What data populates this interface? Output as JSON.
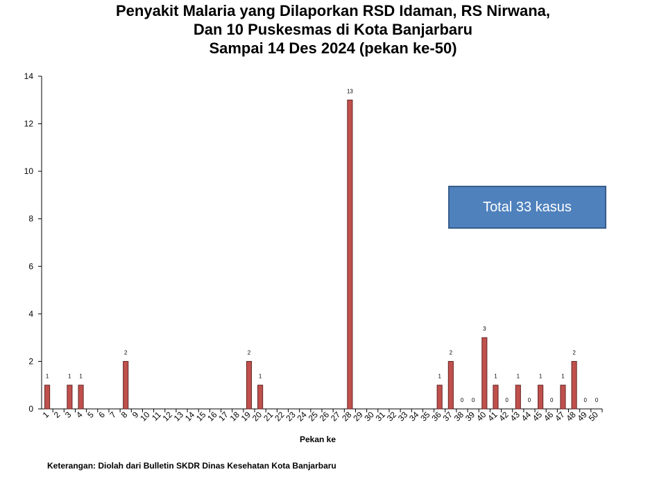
{
  "chart_data": {
    "type": "bar",
    "title_lines": [
      "Penyakit Malaria yang Dilaporkan RSD Idaman, RS Nirwana,",
      "Dan 10 Puskesmas di Kota Banjarbaru",
      "Sampai 14 Des 2024 (pekan ke-50)"
    ],
    "xlabel": "Pekan ke",
    "ylabel": "",
    "ylim": [
      0,
      14
    ],
    "yticks": [
      0,
      2,
      4,
      6,
      8,
      10,
      12,
      14
    ],
    "grid": false,
    "legend": "none",
    "bar_color": "#c0504d",
    "bar_border": "#632523",
    "categories": [
      "1",
      "2",
      "3",
      "4",
      "5",
      "6",
      "7",
      "8",
      "9",
      "10",
      "11",
      "12",
      "13",
      "14",
      "15",
      "16",
      "17",
      "18",
      "19",
      "20",
      "21",
      "22",
      "23",
      "24",
      "25",
      "26",
      "27",
      "28",
      "29",
      "30",
      "31",
      "32",
      "33",
      "34",
      "35",
      "36",
      "37",
      "38",
      "39",
      "40",
      "41",
      "42",
      "43",
      "44",
      "45",
      "46",
      "47",
      "48",
      "49",
      "50"
    ],
    "values": [
      1,
      0,
      1,
      1,
      0,
      0,
      0,
      2,
      0,
      0,
      0,
      0,
      0,
      0,
      0,
      0,
      0,
      0,
      2,
      1,
      0,
      0,
      0,
      0,
      0,
      0,
      0,
      13,
      0,
      0,
      0,
      0,
      0,
      0,
      0,
      1,
      2,
      0,
      0,
      3,
      1,
      0,
      1,
      0,
      1,
      0,
      1,
      2,
      0,
      0
    ],
    "data_labels": [
      {
        "week": "1",
        "label": "1"
      },
      {
        "week": "3",
        "label": "1"
      },
      {
        "week": "4",
        "label": "1"
      },
      {
        "week": "8",
        "label": "2"
      },
      {
        "week": "19",
        "label": "2"
      },
      {
        "week": "20",
        "label": "1"
      },
      {
        "week": "28",
        "label": "13"
      },
      {
        "week": "36",
        "label": "1"
      },
      {
        "week": "37",
        "label": "2"
      },
      {
        "week": "38",
        "label": "0"
      },
      {
        "week": "39",
        "label": "0"
      },
      {
        "week": "40",
        "label": "3"
      },
      {
        "week": "41",
        "label": "1"
      },
      {
        "week": "42",
        "label": "0"
      },
      {
        "week": "43",
        "label": "1"
      },
      {
        "week": "44",
        "label": "0"
      },
      {
        "week": "45",
        "label": "1"
      },
      {
        "week": "46",
        "label": "0"
      },
      {
        "week": "47",
        "label": "1"
      },
      {
        "week": "48",
        "label": "2"
      },
      {
        "week": "49",
        "label": "0"
      },
      {
        "week": "50",
        "label": "0"
      }
    ]
  },
  "annotation": {
    "total_label": "Total 33 kasus"
  },
  "footnote": "Keterangan: Diolah dari Bulletin SKDR Dinas Kesehatan Kota Banjarbaru"
}
